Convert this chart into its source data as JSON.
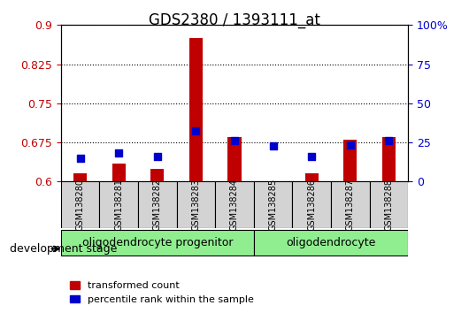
{
  "title": "GDS2380 / 1393111_at",
  "samples": [
    "GSM138280",
    "GSM138281",
    "GSM138282",
    "GSM138283",
    "GSM138284",
    "GSM138285",
    "GSM138286",
    "GSM138287",
    "GSM138288"
  ],
  "transformed_count": [
    0.615,
    0.635,
    0.625,
    0.875,
    0.685,
    0.6,
    0.615,
    0.68,
    0.685
  ],
  "percentile_rank": [
    0.645,
    0.655,
    0.648,
    0.698,
    0.678,
    0.668,
    0.648,
    0.67,
    0.678
  ],
  "percentile_rank_pct": [
    15,
    17,
    15,
    30,
    22,
    20,
    15,
    20,
    25
  ],
  "ylim_left": [
    0.6,
    0.9
  ],
  "yticks_left": [
    0.6,
    0.675,
    0.75,
    0.825,
    0.9
  ],
  "ylim_right": [
    0,
    100
  ],
  "yticks_right": [
    0,
    25,
    50,
    75,
    100
  ],
  "ytick_labels_right": [
    "0",
    "25",
    "50",
    "75",
    "100%"
  ],
  "groups": [
    {
      "label": "oligodendrocyte progenitor",
      "start": 0,
      "end": 4,
      "color": "#90EE90"
    },
    {
      "label": "oligodendrocyte",
      "start": 5,
      "end": 8,
      "color": "#90EE90"
    }
  ],
  "bar_color": "#C00000",
  "dot_color": "#0000CD",
  "bar_width": 0.35,
  "dot_size": 40,
  "left_tick_color": "#C00000",
  "right_tick_color": "#0000CD",
  "grid_color": "black",
  "grid_style": "dotted",
  "background_plot": "white",
  "background_label": "#D3D3D3",
  "development_stage_label": "development stage",
  "legend_items": [
    "transformed count",
    "percentile rank within the sample"
  ],
  "spine_color": "black"
}
